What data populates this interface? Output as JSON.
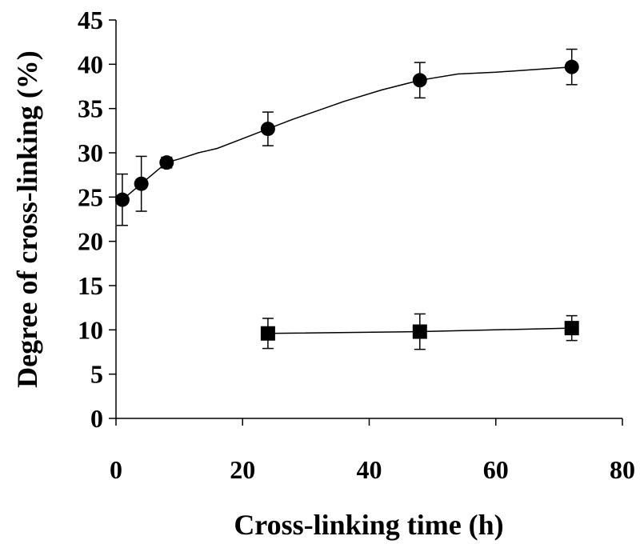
{
  "chart_data": {
    "type": "line",
    "title": "",
    "xlabel": "Cross-linking time (h)",
    "ylabel": "Degree of cross-linking (%)",
    "xlim": [
      0,
      80
    ],
    "ylim": [
      0,
      45
    ],
    "xticks": [
      0,
      20,
      40,
      60,
      80
    ],
    "yticks": [
      0,
      5,
      10,
      15,
      20,
      25,
      30,
      35,
      40,
      45
    ],
    "grid": false,
    "legend": "none",
    "series": [
      {
        "marker": "circle",
        "color": "#000000",
        "x": [
          1,
          4,
          8,
          24,
          48,
          72
        ],
        "y": [
          24.7,
          26.5,
          28.9,
          32.7,
          38.2,
          39.7
        ],
        "error": [
          2.9,
          3.1,
          0.6,
          1.9,
          2.0,
          2.0
        ],
        "curve_x": [
          1,
          4,
          8,
          10,
          13,
          16,
          20,
          24,
          28,
          32,
          36,
          42,
          48,
          54,
          60,
          66,
          72
        ],
        "curve_y": [
          24.7,
          26.5,
          28.9,
          29.3,
          30.0,
          30.5,
          31.6,
          32.7,
          33.8,
          34.8,
          35.8,
          37.1,
          38.2,
          38.9,
          39.1,
          39.4,
          39.7
        ]
      },
      {
        "marker": "square",
        "color": "#000000",
        "x": [
          24,
          48,
          72
        ],
        "y": [
          9.6,
          9.8,
          10.2
        ],
        "error": [
          1.7,
          2.0,
          1.4
        ],
        "curve_x": [
          24,
          48,
          72
        ],
        "curve_y": [
          9.6,
          9.8,
          10.2
        ]
      }
    ]
  }
}
